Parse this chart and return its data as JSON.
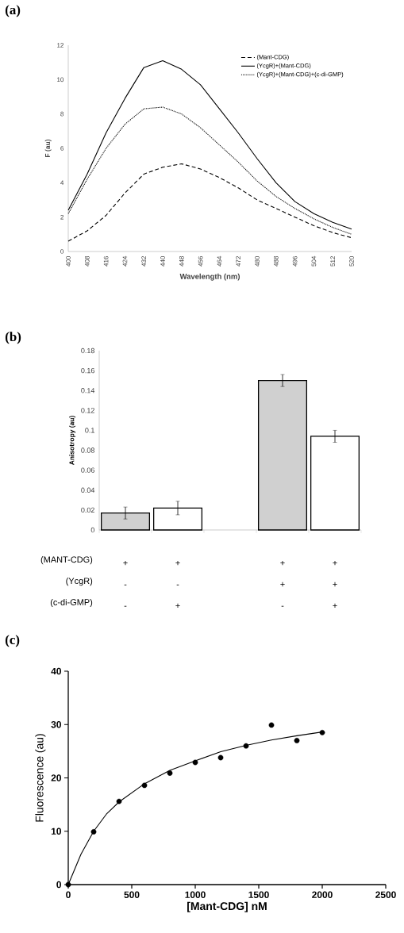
{
  "chart_data": [
    {
      "type": "line",
      "title": "(a)",
      "xlabel": "Wavelength (nm)",
      "ylabel": "F (au)",
      "x": [
        400,
        408,
        416,
        424,
        432,
        440,
        448,
        456,
        464,
        472,
        480,
        488,
        496,
        504,
        512,
        520
      ],
      "xlim": [
        400,
        520
      ],
      "xticks": [
        400,
        408,
        416,
        424,
        432,
        440,
        448,
        456,
        464,
        472,
        480,
        488,
        496,
        504,
        512,
        520
      ],
      "ylim": [
        0,
        12
      ],
      "yticks": [
        0,
        2,
        4,
        6,
        8,
        10,
        12
      ],
      "legend": "top right",
      "series": [
        {
          "name": "(Mant-CDG)",
          "color": "#000000",
          "line_style": "dashed",
          "values": [
            0.6,
            1.2,
            2.1,
            3.4,
            4.5,
            4.9,
            5.1,
            4.8,
            4.3,
            3.7,
            3.0,
            2.5,
            2.0,
            1.5,
            1.1,
            0.8
          ]
        },
        {
          "name": "(YcgR)+(Mant-CDG)",
          "color": "#000000",
          "line_style": "solid",
          "values": [
            2.4,
            4.5,
            6.9,
            8.9,
            10.7,
            11.1,
            10.6,
            9.7,
            8.3,
            6.9,
            5.4,
            4.0,
            2.9,
            2.2,
            1.7,
            1.3
          ]
        },
        {
          "name": "(YcgR)+(Mant-CDG)+(c-di-GMP)",
          "color": "#000000",
          "line_style": "dotted",
          "values": [
            2.2,
            4.2,
            6.0,
            7.4,
            8.3,
            8.4,
            8.0,
            7.2,
            6.2,
            5.2,
            4.1,
            3.2,
            2.5,
            1.9,
            1.4,
            1.0
          ]
        }
      ]
    },
    {
      "type": "bar",
      "title": "(b)",
      "ylabel": "Anisotropy (au)",
      "categories": [
        "+ - -",
        "+ - +",
        null,
        "+ + -",
        "+ + +"
      ],
      "values": [
        0.017,
        0.022,
        null,
        0.15,
        0.094
      ],
      "errors": [
        0.006,
        0.0068,
        null,
        0.006,
        0.006
      ],
      "colors": [
        "#d0d0d0",
        "#ffffff",
        "#ffffff",
        "#d0d0d0",
        "#ffffff"
      ],
      "ylim": [
        0,
        0.18
      ],
      "yticks": [
        0,
        0.02,
        0.04,
        0.06,
        0.08,
        0.1,
        0.12,
        0.14,
        0.16,
        0.18
      ],
      "annotations": [
        "(MANT-CDG)",
        "(YcgR)",
        "(c-di-GMP)"
      ]
    },
    {
      "type": "scatter",
      "title": "(c)",
      "xlabel": "[Mant-CDG] nM",
      "ylabel": "Fluorescence (au)",
      "xlim": [
        0,
        2500
      ],
      "xticks": [
        0,
        500,
        1000,
        1500,
        2000,
        2500
      ],
      "ylim": [
        0,
        40
      ],
      "yticks": [
        0,
        10,
        20,
        30,
        40
      ],
      "series": [
        {
          "type": "scatter",
          "color": "#000000",
          "marker": "circle",
          "x": [
            0,
            200,
            400,
            600,
            800,
            1000,
            1200,
            1400,
            1600,
            1800,
            2000
          ],
          "values": [
            0,
            9.9,
            15.6,
            18.6,
            20.9,
            22.9,
            23.8,
            26.0,
            29.9,
            27.0,
            28.5
          ]
        },
        {
          "type": "line",
          "color": "#000000",
          "marker": "none",
          "x": [
            0,
            100,
            200,
            300,
            400,
            600,
            800,
            1000,
            1200,
            1400,
            1600,
            1800,
            2000
          ],
          "values": [
            0,
            5.7,
            10.0,
            13.2,
            15.5,
            18.9,
            21.4,
            23.2,
            24.9,
            26.1,
            27.1,
            27.9,
            28.6
          ]
        }
      ]
    }
  ]
}
